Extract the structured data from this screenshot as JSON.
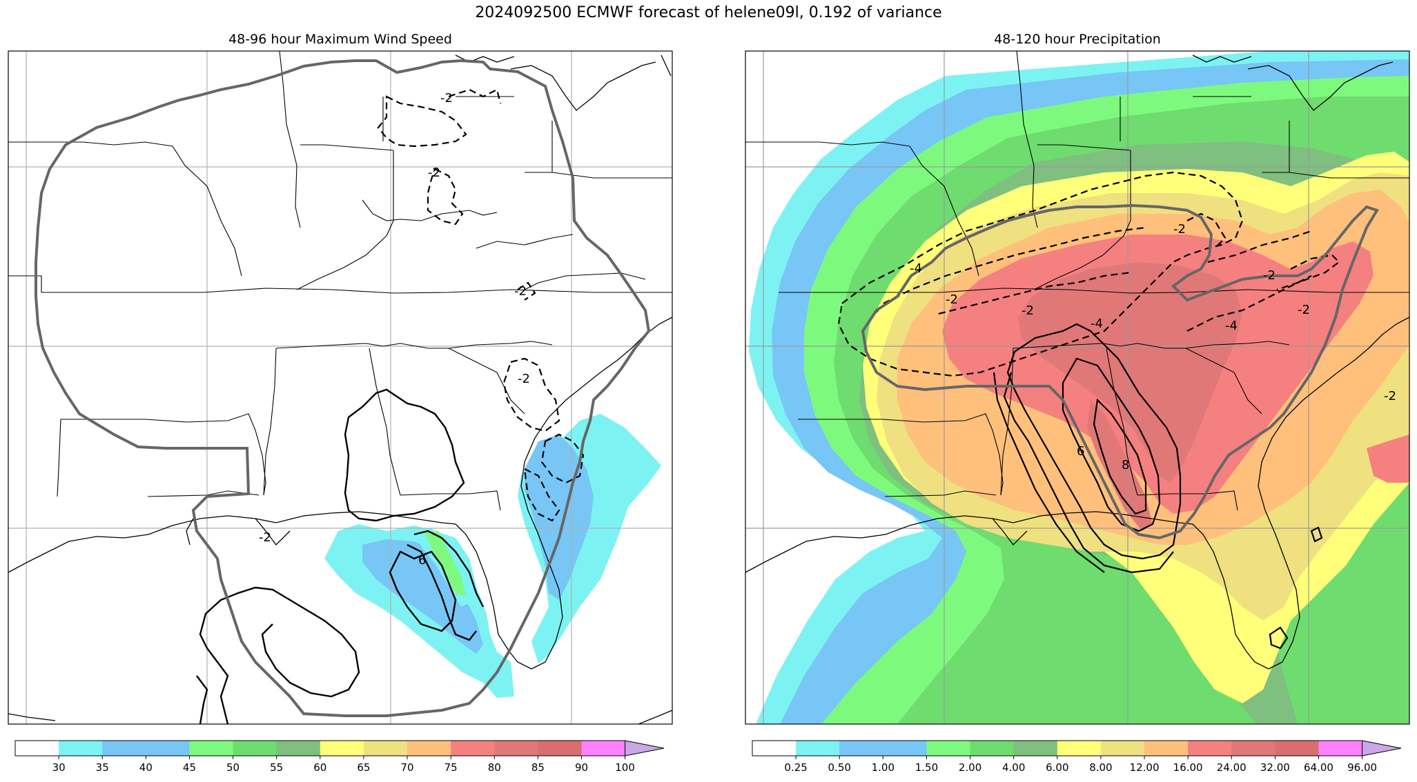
{
  "figure": {
    "title": "2024092500 ECMWF forecast of helene09l, 0.192 of variance"
  },
  "panels": [
    {
      "title": "48-96 hour Maximum Wind Speed",
      "colorbar": {
        "ticks": [
          "30",
          "35",
          "40",
          "45",
          "50",
          "55",
          "60",
          "65",
          "70",
          "75",
          "80",
          "85",
          "90",
          "100"
        ],
        "colors": [
          "#ffffff",
          "#7df2f2",
          "#77c6f5",
          "#77c6f5",
          "#7dfa7d",
          "#6edc6e",
          "#7fbf7f",
          "#ffff7a",
          "#efe080",
          "#ffc07c",
          "#f58080",
          "#e07878",
          "#d86e70",
          "#ff80ff",
          "#caa8e6"
        ]
      },
      "contour_labels": [
        "-2",
        "-2",
        "-2",
        "-2",
        "-2",
        "6"
      ]
    },
    {
      "title": "48-120 hour Precipitation",
      "colorbar": {
        "ticks": [
          "0.25",
          "0.50",
          "1.00",
          "1.50",
          "2.00",
          "4.00",
          "6.00",
          "8.00",
          "12.00",
          "16.00",
          "24.00",
          "32.00",
          "64.00",
          "96.00"
        ],
        "colors": [
          "#ffffff",
          "#7df2f2",
          "#77c6f5",
          "#77c6f5",
          "#7dfa7d",
          "#6edc6e",
          "#7fbf7f",
          "#ffff7a",
          "#efe080",
          "#ffc07c",
          "#f58080",
          "#e07878",
          "#d86e70",
          "#ff80ff",
          "#caa8e6"
        ]
      },
      "contour_labels": [
        "-2",
        "-2",
        "-4",
        "-2",
        "-4",
        "-2",
        "-2",
        "-4",
        "6",
        "8",
        "-2"
      ]
    }
  ]
}
